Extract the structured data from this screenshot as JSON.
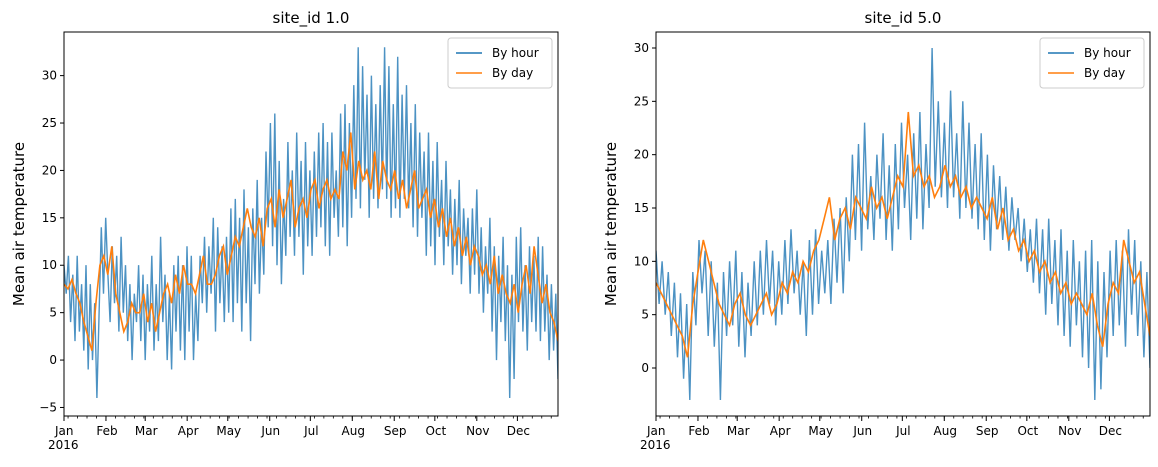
{
  "chart_data": [
    {
      "type": "line",
      "title": "site_id 1.0",
      "ylabel": "Mean air temperature",
      "xlabel": "",
      "x_tick_labels": [
        "Jan",
        "Feb",
        "Mar",
        "Apr",
        "May",
        "Jun",
        "Jul",
        "Aug",
        "Sep",
        "Oct",
        "Nov",
        "Dec"
      ],
      "x_year_label": "2016",
      "yticks": [
        -5,
        0,
        5,
        10,
        15,
        20,
        25,
        30
      ],
      "ylim": [
        -5.9,
        34.6
      ],
      "xlim": [
        "2016-01-01",
        "2016-12-31"
      ],
      "legend_position": "top-right",
      "series": [
        {
          "name": "By hour",
          "color": "#1f77b4",
          "values": [
            10,
            7,
            11,
            4,
            9,
            2,
            11,
            3,
            8,
            1,
            10,
            -1,
            8,
            0,
            6,
            -4,
            5,
            14,
            7,
            15,
            9,
            4,
            12,
            6,
            11,
            3,
            13,
            5,
            10,
            2,
            8,
            0,
            7,
            4,
            10,
            2,
            9,
            0,
            8,
            3,
            11,
            1,
            8,
            2,
            13,
            4,
            9,
            0,
            7,
            -1,
            10,
            3,
            11,
            1,
            10,
            0,
            12,
            3,
            11,
            0,
            7,
            2,
            11,
            6,
            13,
            5,
            12,
            7,
            15,
            3,
            14,
            6,
            12,
            4,
            13,
            5,
            16,
            4,
            17,
            6,
            15,
            3,
            18,
            6,
            14,
            2,
            16,
            8,
            19,
            7,
            15,
            9,
            22,
            14,
            25,
            12,
            26,
            10,
            21,
            8,
            17,
            11,
            23,
            13,
            20,
            11,
            24,
            13,
            21,
            9,
            23,
            12,
            20,
            11,
            22,
            13,
            24,
            14,
            25,
            12,
            23,
            11,
            24,
            15,
            20,
            13,
            26,
            14,
            27,
            12,
            25,
            15,
            29,
            17,
            33,
            16,
            31,
            19,
            28,
            15,
            30,
            17,
            27,
            16,
            29,
            18,
            33,
            17,
            31,
            15,
            27,
            16,
            32,
            15,
            28,
            17,
            29,
            16,
            25,
            14,
            27,
            13,
            24,
            15,
            22,
            11,
            24,
            12,
            21,
            10,
            23,
            13,
            19,
            10,
            21,
            12,
            18,
            9,
            17,
            10,
            19,
            8,
            16,
            11,
            15,
            7,
            16,
            9,
            18,
            7,
            14,
            5,
            12,
            7,
            15,
            3,
            12,
            0,
            11,
            4,
            13,
            2,
            10,
            -4,
            9,
            -2,
            13,
            4,
            14,
            3,
            10,
            1,
            12,
            4,
            11,
            3,
            13,
            2,
            12,
            3,
            9,
            0,
            8,
            1,
            7,
            -2
          ]
        },
        {
          "name": "By day",
          "color": "#ff7f0e",
          "values": [
            8,
            7.5,
            8.5,
            7,
            6,
            4,
            2.5,
            1,
            6,
            10,
            11,
            9,
            12,
            7,
            5,
            3,
            4,
            6,
            5,
            5,
            7,
            4,
            6,
            3,
            5,
            7,
            8,
            6,
            9,
            7,
            10,
            8,
            8,
            7,
            9,
            11,
            8,
            8,
            9,
            11,
            12,
            9,
            11,
            13,
            12,
            14,
            16,
            14,
            13,
            15,
            12,
            16,
            17,
            14,
            18,
            15,
            17,
            19,
            14,
            16,
            17,
            15,
            18,
            19,
            16,
            18,
            19,
            17,
            18,
            17,
            22,
            20,
            24,
            18,
            21,
            19,
            20,
            18,
            22,
            17,
            21,
            19,
            18,
            20,
            17,
            19,
            16,
            18,
            20,
            16,
            17,
            18,
            15,
            17,
            14,
            16,
            13,
            15,
            12,
            14,
            11,
            13,
            10,
            12,
            11,
            9,
            10,
            8,
            11,
            7,
            9,
            7,
            6,
            8,
            5,
            8,
            10,
            7,
            12,
            9,
            6,
            8,
            5,
            4,
            2
          ]
        }
      ]
    },
    {
      "type": "line",
      "title": "site_id 5.0",
      "ylabel": "Mean air temperature",
      "xlabel": "",
      "x_tick_labels": [
        "Jan",
        "Feb",
        "Mar",
        "Apr",
        "May",
        "Jun",
        "Jul",
        "Aug",
        "Sep",
        "Oct",
        "Nov",
        "Dec"
      ],
      "x_year_label": "2016",
      "yticks": [
        0,
        5,
        10,
        15,
        20,
        25,
        30
      ],
      "ylim": [
        -4.5,
        31.5
      ],
      "xlim": [
        "2016-01-01",
        "2016-12-31"
      ],
      "legend_position": "top-right",
      "series": [
        {
          "name": "By hour",
          "color": "#1f77b4",
          "values": [
            11,
            6,
            10,
            5,
            9,
            3,
            8,
            1,
            7,
            -1,
            6,
            -3,
            9,
            4,
            12,
            7,
            11,
            3,
            10,
            2,
            8,
            -3,
            9,
            3,
            10,
            4,
            11,
            2,
            9,
            1,
            8,
            3,
            10,
            4,
            11,
            5,
            12,
            6,
            11,
            4,
            10,
            5,
            12,
            6,
            13,
            7,
            11,
            5,
            10,
            3,
            12,
            5,
            13,
            6,
            11,
            7,
            12,
            6,
            14,
            8,
            15,
            7,
            16,
            10,
            20,
            12,
            21,
            11,
            23,
            13,
            18,
            12,
            20,
            14,
            22,
            12,
            19,
            11,
            21,
            13,
            23,
            15,
            20,
            12,
            22,
            14,
            24,
            13,
            21,
            15,
            30,
            17,
            25,
            16,
            23,
            15,
            26,
            16,
            22,
            14,
            25,
            15,
            23,
            14,
            21,
            13,
            22,
            12,
            20,
            11,
            19,
            13,
            18,
            12,
            17,
            11,
            16,
            12,
            15,
            10,
            14,
            9,
            13,
            8,
            14,
            7,
            13,
            5,
            14,
            6,
            12,
            4,
            13,
            3,
            11,
            2,
            12,
            4,
            10,
            1,
            11,
            0,
            12,
            -3,
            10,
            -2,
            9,
            1,
            11,
            3,
            12,
            4,
            11,
            2,
            13,
            5,
            12,
            3,
            10,
            1,
            9,
            0
          ]
        },
        {
          "name": "By day",
          "color": "#ff7f0e",
          "values": [
            8,
            7,
            6,
            5,
            4,
            3,
            1,
            6,
            9,
            12,
            10,
            8,
            6,
            5,
            4,
            6,
            7,
            5,
            4,
            5,
            6,
            7,
            5,
            6,
            8,
            7,
            9,
            8,
            10,
            9,
            11,
            12,
            14,
            16,
            12,
            14,
            15,
            13,
            16,
            15,
            14,
            17,
            15,
            16,
            14,
            16,
            18,
            17,
            24,
            18,
            19,
            17,
            18,
            16,
            17,
            19,
            17,
            18,
            16,
            17,
            15,
            16,
            15,
            14,
            16,
            13,
            15,
            12,
            13,
            11,
            12,
            10,
            11,
            9,
            10,
            8,
            9,
            7,
            8,
            6,
            7,
            6,
            5,
            7,
            4,
            2,
            6,
            8,
            7,
            12,
            10,
            8,
            9,
            6,
            3
          ]
        }
      ]
    }
  ]
}
